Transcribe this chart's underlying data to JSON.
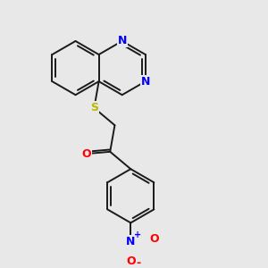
{
  "bg_color": "#e8e8e8",
  "bond_color": "#1a1a1a",
  "N_color": "#0000ff",
  "S_color": "#b8b800",
  "O_color": "#ff0000",
  "line_width": 1.4,
  "fig_size": [
    3.0,
    3.0
  ],
  "dpi": 100,
  "xlim": [
    0,
    10
  ],
  "ylim": [
    0,
    10
  ]
}
